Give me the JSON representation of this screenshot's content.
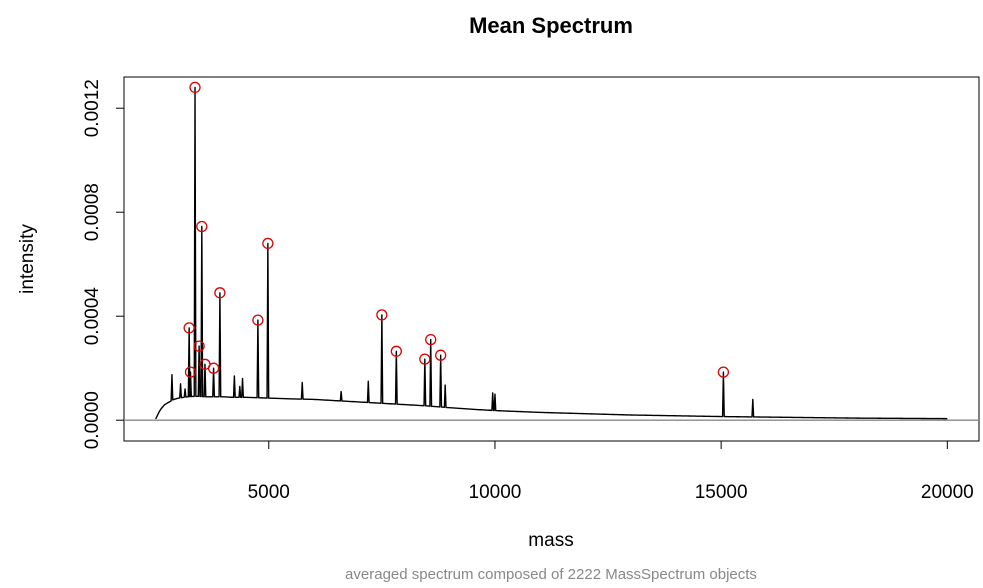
{
  "chart_data": {
    "type": "line",
    "title": "Mean Spectrum",
    "xlabel": "mass",
    "ylabel": "intensity",
    "subtitle": "averaged spectrum composed of 2222 MassSpectrum objects",
    "xlim": [
      1800,
      20700
    ],
    "ylim": [
      -8e-05,
      0.00132
    ],
    "x_ticks": [
      5000,
      10000,
      15000,
      20000
    ],
    "x_tick_labels": [
      "5000",
      "10000",
      "15000",
      "20000"
    ],
    "y_ticks": [
      0,
      0.0004,
      0.0008,
      0.0012
    ],
    "y_tick_labels": [
      "0.0000",
      "0.0004",
      "0.0008",
      "0.0012"
    ],
    "baseline": 0,
    "series": [
      {
        "color": "#000000",
        "x": [
          2500,
          2600,
          2700,
          2800,
          2900,
          3000,
          3200,
          3400,
          3600,
          3800,
          4000,
          4200,
          4500,
          5000,
          5500,
          6000,
          6500,
          7000,
          7500,
          8000,
          8500,
          9000,
          9500,
          10000,
          11000,
          12000,
          13000,
          14000,
          15000,
          16000,
          17000,
          18000,
          19000,
          20000
        ],
        "values": [
          5e-06,
          4e-05,
          6e-05,
          7e-05,
          8e-05,
          8.5e-05,
          9e-05,
          9.2e-05,
          9e-05,
          9e-05,
          9e-05,
          8.8e-05,
          8.8e-05,
          8.5e-05,
          8.2e-05,
          8e-05,
          7.5e-05,
          7e-05,
          6.5e-05,
          6e-05,
          5.5e-05,
          4.8e-05,
          4.2e-05,
          3.7e-05,
          3e-05,
          2.5e-05,
          2e-05,
          1.7e-05,
          1.4e-05,
          1.2e-05,
          1e-05,
          8e-06,
          7e-06,
          6e-06
        ]
      }
    ],
    "peaks": [
      {
        "x": 3240,
        "y": 0.000355
      },
      {
        "x": 3270,
        "y": 0.000185
      },
      {
        "x": 3370,
        "y": 0.00128
      },
      {
        "x": 3460,
        "y": 0.000285
      },
      {
        "x": 3520,
        "y": 0.000745
      },
      {
        "x": 3590,
        "y": 0.000215
      },
      {
        "x": 3780,
        "y": 0.0002
      },
      {
        "x": 3920,
        "y": 0.00049
      },
      {
        "x": 4760,
        "y": 0.000385
      },
      {
        "x": 4980,
        "y": 0.00068
      },
      {
        "x": 7500,
        "y": 0.000405
      },
      {
        "x": 7820,
        "y": 0.000265
      },
      {
        "x": 8450,
        "y": 0.000235
      },
      {
        "x": 8580,
        "y": 0.00031
      },
      {
        "x": 8800,
        "y": 0.00025
      },
      {
        "x": 15050,
        "y": 0.000185
      }
    ],
    "minor_peaks": [
      {
        "x": 2860,
        "y": 0.000175
      },
      {
        "x": 3050,
        "y": 0.00014
      },
      {
        "x": 3150,
        "y": 0.00012
      },
      {
        "x": 4240,
        "y": 0.00017
      },
      {
        "x": 4360,
        "y": 0.00013
      },
      {
        "x": 4420,
        "y": 0.00016
      },
      {
        "x": 5740,
        "y": 0.000145
      },
      {
        "x": 6600,
        "y": 0.00011
      },
      {
        "x": 7200,
        "y": 0.00015
      },
      {
        "x": 8900,
        "y": 0.000135
      },
      {
        "x": 9950,
        "y": 0.000105
      },
      {
        "x": 10000,
        "y": 0.0001
      },
      {
        "x": 15700,
        "y": 8e-05
      }
    ],
    "colors": {
      "line": "#000000",
      "baseline": "#888888",
      "peak_marker": "#e00000"
    },
    "grid": false,
    "legend": "none"
  }
}
